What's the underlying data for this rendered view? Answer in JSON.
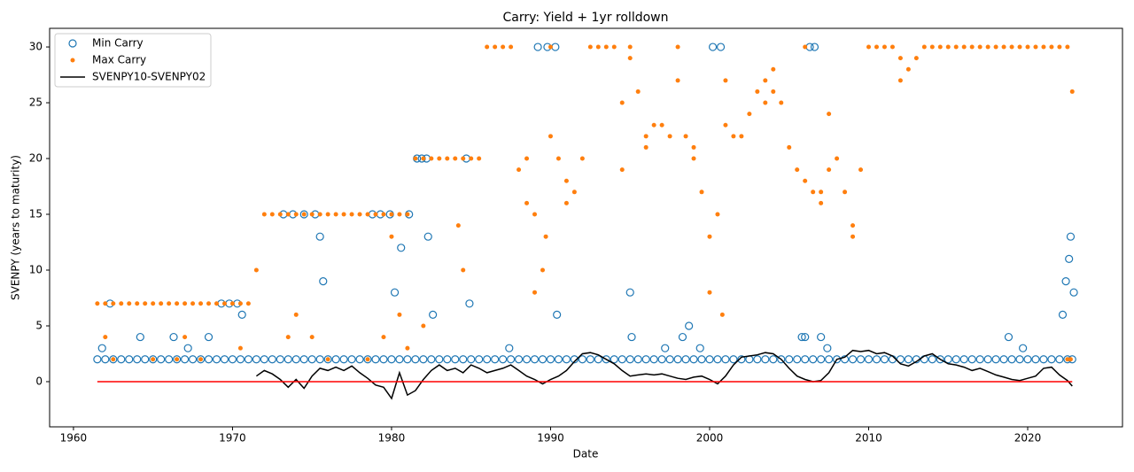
{
  "chart_data": {
    "type": "scatter",
    "title": "Carry: Yield + 1yr rolldown",
    "xlabel": "Date",
    "ylabel": "SVENPY (years to maturity)",
    "xlim": [
      1958.5,
      2025.96
    ],
    "ylim": [
      -4.05,
      31.67
    ],
    "xticks": [
      1960,
      1970,
      1980,
      1990,
      2000,
      2010,
      2020
    ],
    "yticks": [
      0,
      5,
      10,
      15,
      20,
      25,
      30
    ],
    "grid": false,
    "legend": "upper left",
    "hline": {
      "y": 0,
      "x": [
        1961.5,
        2022.8
      ],
      "color": "#ff0000"
    },
    "series": [
      {
        "name": "Min Carry",
        "kind": "open-circle",
        "color": "#1f77b4",
        "x": [
          1961.5,
          1962,
          1962.5,
          1963,
          1963.5,
          1964,
          1964.5,
          1965,
          1965.5,
          1966,
          1966.5,
          1967,
          1967.5,
          1968,
          1968.5,
          1969,
          1969.5,
          1970,
          1970.5,
          1971,
          1971.5,
          1972,
          1972.5,
          1973,
          1973.5,
          1974,
          1974.5,
          1975,
          1975.5,
          1976,
          1976.5,
          1977,
          1977.5,
          1978,
          1978.5,
          1979,
          1979.5,
          1980,
          1980.5,
          1981,
          1981.5,
          1982,
          1982.5,
          1983,
          1983.5,
          1984,
          1984.5,
          1985,
          1985.5,
          1986,
          1986.5,
          1987,
          1987.5,
          1988,
          1988.5,
          1989,
          1989.5,
          1990,
          1990.5,
          1991,
          1991.5,
          1992,
          1992.5,
          1993,
          1993.5,
          1994,
          1994.5,
          1995,
          1995.5,
          1996,
          1996.5,
          1997,
          1997.5,
          1998,
          1998.5,
          1999,
          1999.5,
          2000,
          2000.5,
          2001,
          2001.5,
          2002,
          2002.5,
          2003,
          2003.5,
          2004,
          2004.5,
          2005,
          2005.5,
          2006,
          2006.5,
          2007,
          2007.5,
          2008,
          2008.5,
          2009,
          2009.5,
          2010,
          2010.5,
          2011,
          2011.5,
          2012,
          2012.5,
          2013,
          2013.5,
          2014,
          2014.5,
          2015,
          2015.5,
          2016,
          2016.5,
          2017,
          2017.5,
          2018,
          2018.5,
          2019,
          2019.5,
          2020,
          2020.5,
          2021,
          2021.5,
          2022,
          2022.5,
          2022.8,
          1961.8,
          1962.3,
          1964.2,
          1966.3,
          1967.2,
          1968.5,
          1969.3,
          1969.8,
          1970.3,
          1970.6,
          1973.2,
          1973.8,
          1974.5,
          1975.2,
          1975.5,
          1975.7,
          1978.8,
          1979.3,
          1979.9,
          1980.2,
          1980.6,
          1981.1,
          1981.6,
          1981.9,
          1982.2,
          1982.3,
          1982.6,
          1984.7,
          1984.9,
          1987.4,
          1989.2,
          1989.8,
          1990.3,
          1990.4,
          1995,
          1995.1,
          1997.2,
          1998.3,
          1998.7,
          1999.4,
          2000.2,
          2000.7,
          2005.8,
          2006,
          2006.3,
          2006.6,
          2007,
          2007.4,
          2018.8,
          2019.7,
          2022.2,
          2022.4,
          2022.6,
          2022.7,
          2022.9
        ],
        "values": [
          2,
          2,
          2,
          2,
          2,
          2,
          2,
          2,
          2,
          2,
          2,
          2,
          2,
          2,
          2,
          2,
          2,
          2,
          2,
          2,
          2,
          2,
          2,
          2,
          2,
          2,
          2,
          2,
          2,
          2,
          2,
          2,
          2,
          2,
          2,
          2,
          2,
          2,
          2,
          2,
          2,
          2,
          2,
          2,
          2,
          2,
          2,
          2,
          2,
          2,
          2,
          2,
          2,
          2,
          2,
          2,
          2,
          2,
          2,
          2,
          2,
          2,
          2,
          2,
          2,
          2,
          2,
          2,
          2,
          2,
          2,
          2,
          2,
          2,
          2,
          2,
          2,
          2,
          2,
          2,
          2,
          2,
          2,
          2,
          2,
          2,
          2,
          2,
          2,
          2,
          2,
          2,
          2,
          2,
          2,
          2,
          2,
          2,
          2,
          2,
          2,
          2,
          2,
          2,
          2,
          2,
          2,
          2,
          2,
          2,
          2,
          2,
          2,
          2,
          2,
          2,
          2,
          2,
          2,
          2,
          2,
          2,
          2,
          2,
          3,
          7,
          4,
          4,
          3,
          4,
          7,
          7,
          7,
          6,
          15,
          15,
          15,
          15,
          13,
          9,
          15,
          15,
          15,
          8,
          12,
          15,
          20,
          20,
          20,
          13,
          6,
          20,
          7,
          3,
          30,
          30,
          30,
          6,
          8,
          4,
          3,
          4,
          5,
          3,
          30,
          30,
          4,
          4,
          30,
          30,
          4,
          3,
          4,
          3,
          6,
          9,
          11,
          13,
          8
        ]
      },
      {
        "name": "Max Carry",
        "kind": "dot",
        "color": "#ff7f0e",
        "x": [
          1961.5,
          1962,
          1962.5,
          1963,
          1963.5,
          1964,
          1964.5,
          1965,
          1965.5,
          1966,
          1966.5,
          1967,
          1967.5,
          1968,
          1968.5,
          1969,
          1969.5,
          1970,
          1970.5,
          1971,
          1971.5,
          1972,
          1972.5,
          1973,
          1973.5,
          1974,
          1974.5,
          1975,
          1975.5,
          1976,
          1976.5,
          1977,
          1977.5,
          1978,
          1978.5,
          1979,
          1979.5,
          1980,
          1980.5,
          1981,
          1981.5,
          1982,
          1982.5,
          1983,
          1983.5,
          1984,
          1984.5,
          1985,
          1985.5,
          1986,
          1986.5,
          1987,
          1987.5,
          1988,
          1988.5,
          1989,
          1989.5,
          1990,
          1990.5,
          1991,
          1991.5,
          1992,
          1992.5,
          1993,
          1993.5,
          1994,
          1994.5,
          1995,
          1995.5,
          1996,
          1996.5,
          1997,
          1997.5,
          1998,
          1998.5,
          1999,
          1999.5,
          2000,
          2000.5,
          2001,
          2001.5,
          2002,
          2002.5,
          2003,
          2003.5,
          2004,
          2004.5,
          2005,
          2005.5,
          2006,
          2006.5,
          2007,
          2007.5,
          2008,
          2008.5,
          2009,
          2009.5,
          2010,
          2010.5,
          2011,
          2011.5,
          2012,
          2012.5,
          2013,
          2013.5,
          2014,
          2014.5,
          2015,
          2015.5,
          2016,
          2016.5,
          2017,
          2017.5,
          2018,
          2018.5,
          2019,
          2019.5,
          2020,
          2020.5,
          2021,
          2021.5,
          2022,
          2022.5,
          2022.8,
          1966.5,
          1967,
          1968,
          1970.5,
          1973.5,
          1974,
          1975,
          1976,
          1978.5,
          1979.5,
          1980,
          1980.5,
          1981,
          1982,
          1984.2,
          1984.5,
          1988.5,
          1989,
          1989.7,
          1990,
          1991,
          1994.5,
          1995,
          1996,
          1998,
          1999,
          2000,
          2000.8,
          2001,
          2003.5,
          2004,
          2006,
          2007,
          2007.5,
          2009,
          2012,
          2022.5,
          2022.7,
          1962,
          1962.5,
          1965
        ],
        "values": [
          7,
          7,
          7,
          7,
          7,
          7,
          7,
          7,
          7,
          7,
          7,
          7,
          7,
          7,
          7,
          7,
          7,
          7,
          7,
          7,
          10,
          15,
          15,
          15,
          15,
          15,
          15,
          15,
          15,
          15,
          15,
          15,
          15,
          15,
          15,
          15,
          15,
          15,
          15,
          15,
          20,
          20,
          20,
          20,
          20,
          20,
          20,
          20,
          20,
          30,
          30,
          30,
          30,
          19,
          16,
          15,
          10,
          30,
          20,
          18,
          17,
          20,
          30,
          30,
          30,
          30,
          25,
          30,
          26,
          22,
          23,
          23,
          22,
          30,
          22,
          21,
          17,
          13,
          15,
          23,
          22,
          22,
          24,
          26,
          25,
          26,
          25,
          21,
          19,
          18,
          17,
          17,
          19,
          20,
          17,
          14,
          19,
          30,
          30,
          30,
          30,
          29,
          28,
          29,
          30,
          30,
          30,
          30,
          30,
          30,
          30,
          30,
          30,
          30,
          30,
          30,
          30,
          30,
          30,
          30,
          30,
          30,
          30,
          26,
          2,
          4,
          2,
          3,
          4,
          6,
          4,
          2,
          2,
          4,
          13,
          6,
          3,
          5,
          14,
          10,
          20,
          8,
          13,
          22,
          16,
          19,
          29,
          21,
          27,
          20,
          8,
          6,
          27,
          27,
          28,
          30,
          16,
          24,
          13,
          27,
          2,
          2,
          4,
          2,
          2
        ]
      },
      {
        "name": "SVENPY10-SVENPY02",
        "kind": "line",
        "color": "#000000",
        "x": [
          1971.5,
          1972,
          1972.5,
          1973,
          1973.5,
          1974,
          1974.5,
          1975,
          1975.5,
          1976,
          1976.5,
          1977,
          1977.5,
          1978,
          1978.5,
          1979,
          1979.5,
          1980,
          1980.5,
          1981,
          1981.5,
          1982,
          1982.5,
          1983,
          1983.5,
          1984,
          1984.5,
          1985,
          1985.5,
          1986,
          1986.5,
          1987,
          1987.5,
          1988,
          1988.5,
          1989,
          1989.5,
          1990,
          1990.5,
          1991,
          1991.5,
          1992,
          1992.5,
          1993,
          1993.5,
          1994,
          1994.5,
          1995,
          1995.5,
          1996,
          1996.5,
          1997,
          1997.5,
          1998,
          1998.5,
          1999,
          1999.5,
          2000,
          2000.5,
          2001,
          2001.5,
          2002,
          2002.5,
          2003,
          2003.5,
          2004,
          2004.5,
          2005,
          2005.5,
          2006,
          2006.5,
          2007,
          2007.5,
          2008,
          2008.5,
          2009,
          2009.5,
          2010,
          2010.5,
          2011,
          2011.5,
          2012,
          2012.5,
          2013,
          2013.5,
          2014,
          2014.5,
          2015,
          2015.5,
          2016,
          2016.5,
          2017,
          2017.5,
          2018,
          2018.5,
          2019,
          2019.5,
          2020,
          2020.5,
          2021,
          2021.5,
          2022,
          2022.5,
          2022.8
        ],
        "values": [
          0.5,
          1.0,
          0.7,
          0.2,
          -0.5,
          0.2,
          -0.6,
          0.5,
          1.2,
          1.0,
          1.3,
          1.0,
          1.4,
          0.8,
          0.3,
          -0.3,
          -0.5,
          -1.5,
          0.8,
          -1.2,
          -0.8,
          0.2,
          1.0,
          1.5,
          1.0,
          1.2,
          0.8,
          1.5,
          1.2,
          0.8,
          1.0,
          1.2,
          1.5,
          1.0,
          0.5,
          0.2,
          -0.2,
          0.2,
          0.5,
          1.0,
          1.8,
          2.5,
          2.6,
          2.4,
          2.0,
          1.6,
          1.0,
          0.5,
          0.6,
          0.7,
          0.6,
          0.7,
          0.5,
          0.3,
          0.2,
          0.4,
          0.5,
          0.2,
          -0.2,
          0.5,
          1.5,
          2.2,
          2.3,
          2.4,
          2.6,
          2.5,
          2.0,
          1.2,
          0.5,
          0.2,
          0,
          0.1,
          0.8,
          2.0,
          2.2,
          2.8,
          2.7,
          2.8,
          2.5,
          2.6,
          2.3,
          1.6,
          1.4,
          1.8,
          2.3,
          2.5,
          2.0,
          1.6,
          1.5,
          1.3,
          1.0,
          1.2,
          0.9,
          0.6,
          0.4,
          0.2,
          0.1,
          0.3,
          0.5,
          1.2,
          1.3,
          0.6,
          0.1,
          -0.4
        ]
      }
    ]
  }
}
